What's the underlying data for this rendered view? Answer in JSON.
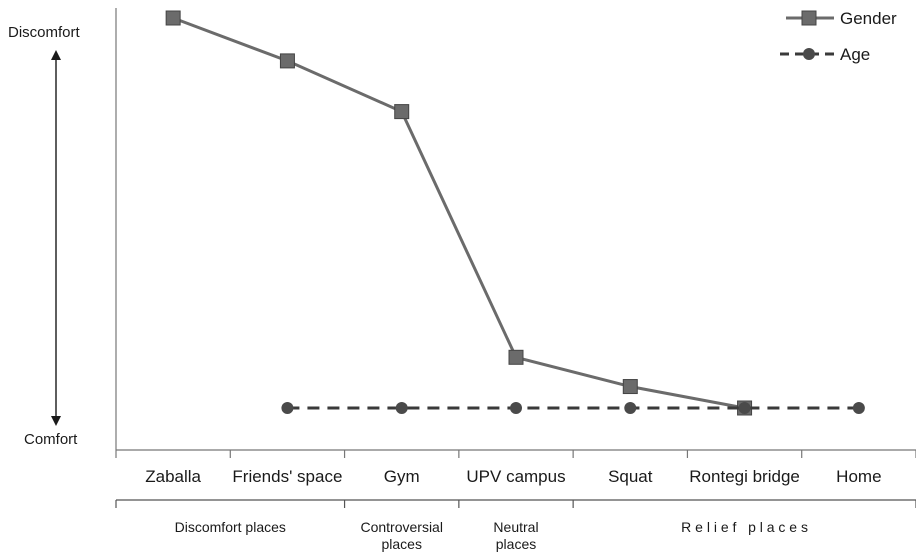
{
  "chart_data": {
    "type": "line",
    "categories": [
      "Zaballa",
      "Friends' space",
      "Gym",
      "UPV campus",
      "Squat",
      "Rontegi bridge",
      "Home"
    ],
    "y_axis": {
      "top_label": "Discomfort",
      "bottom_label": "Comfort",
      "ylim": [
        0,
        1
      ]
    },
    "series": [
      {
        "name": "Gender",
        "style": "solid",
        "marker": "square",
        "color": "#6b6b6b",
        "values": [
          1.0,
          0.89,
          0.76,
          0.13,
          0.055,
          0.0,
          null
        ]
      },
      {
        "name": "Age",
        "style": "dashed",
        "marker": "circle",
        "color": "#3a3a3a",
        "values": [
          null,
          0.0,
          0.0,
          0.0,
          0.0,
          0.0,
          0.0
        ]
      }
    ],
    "groups": [
      {
        "label": "Discomfort places",
        "from": 0,
        "to": 1
      },
      {
        "label": "Controversial places",
        "lines": [
          "Controversial",
          "places"
        ],
        "from": 2,
        "to": 2
      },
      {
        "label": "Neutral places",
        "lines": [
          "Neutral",
          "places"
        ],
        "from": 3,
        "to": 3
      },
      {
        "label": "Relief places",
        "display": "R e l i e f   p l a c e s",
        "from": 4,
        "to": 6
      }
    ],
    "legend_position": "top-right",
    "grid": false
  }
}
